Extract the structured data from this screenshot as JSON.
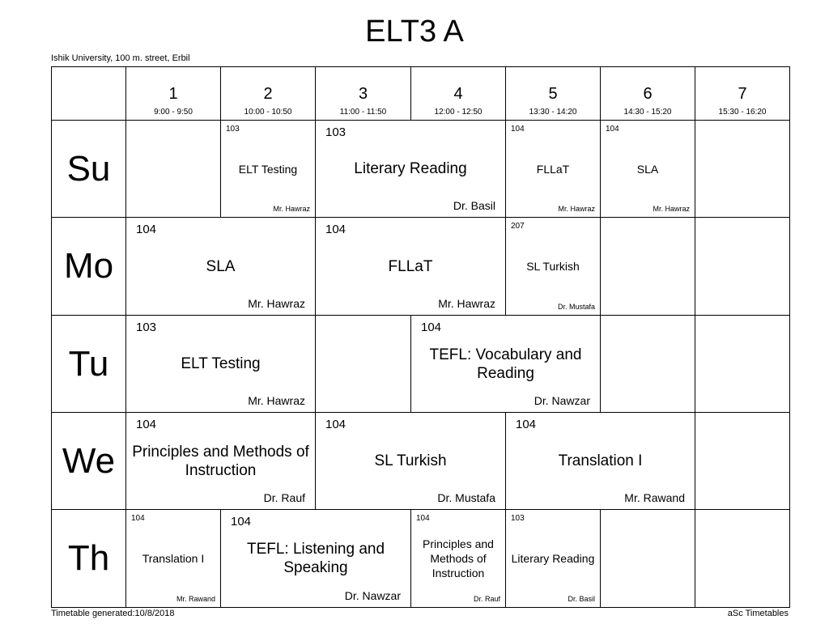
{
  "title": "ELT3 A",
  "address": "Ishik University, 100 m. street, Erbil",
  "footer_left": "Timetable generated:10/8/2018",
  "footer_right": "aSc Timetables",
  "periods": [
    {
      "num": "1",
      "time": "9:00 - 9:50"
    },
    {
      "num": "2",
      "time": "10:00 - 10:50"
    },
    {
      "num": "3",
      "time": "11:00 - 11:50"
    },
    {
      "num": "4",
      "time": "12:00 - 12:50"
    },
    {
      "num": "5",
      "time": "13:30 - 14:20"
    },
    {
      "num": "6",
      "time": "14:30 - 15:20"
    },
    {
      "num": "7",
      "time": "15:30 - 16:20"
    }
  ],
  "days": [
    {
      "name": "Su",
      "cells": [
        {
          "start": 1,
          "span": 1
        },
        {
          "start": 2,
          "span": 1,
          "small": true,
          "room": "103",
          "subject": "ELT Testing",
          "teacher": "Mr. Hawraz"
        },
        {
          "start": 3,
          "span": 2,
          "room": "103",
          "subject": "Literary Reading",
          "teacher": "Dr. Basil"
        },
        {
          "start": 5,
          "span": 1,
          "small": true,
          "room": "104",
          "subject": "FLLaT",
          "teacher": "Mr. Hawraz"
        },
        {
          "start": 6,
          "span": 1,
          "small": true,
          "room": "104",
          "subject": "SLA",
          "teacher": "Mr. Hawraz"
        },
        {
          "start": 7,
          "span": 1
        }
      ]
    },
    {
      "name": "Mo",
      "cells": [
        {
          "start": 1,
          "span": 2,
          "room": "104",
          "subject": "SLA",
          "teacher": "Mr. Hawraz"
        },
        {
          "start": 3,
          "span": 2,
          "room": "104",
          "subject": "FLLaT",
          "teacher": "Mr. Hawraz"
        },
        {
          "start": 5,
          "span": 1,
          "small": true,
          "room": "207",
          "subject": "SL Turkish",
          "teacher": "Dr. Mustafa"
        },
        {
          "start": 6,
          "span": 1
        },
        {
          "start": 7,
          "span": 1
        }
      ]
    },
    {
      "name": "Tu",
      "cells": [
        {
          "start": 1,
          "span": 2,
          "room": "103",
          "subject": "ELT Testing",
          "teacher": "Mr. Hawraz"
        },
        {
          "start": 3,
          "span": 1
        },
        {
          "start": 4,
          "span": 2,
          "room": "104",
          "subject": "TEFL: Vocabulary and Reading",
          "teacher": "Dr. Nawzar"
        },
        {
          "start": 6,
          "span": 1
        },
        {
          "start": 7,
          "span": 1
        }
      ]
    },
    {
      "name": "We",
      "cells": [
        {
          "start": 1,
          "span": 2,
          "room": "104",
          "subject": "Principles and Methods of Instruction",
          "teacher": "Dr. Rauf"
        },
        {
          "start": 3,
          "span": 2,
          "room": "104",
          "subject": "SL Turkish",
          "teacher": "Dr. Mustafa"
        },
        {
          "start": 5,
          "span": 2,
          "room": "104",
          "subject": "Translation I",
          "teacher": "Mr. Rawand"
        },
        {
          "start": 7,
          "span": 1
        }
      ]
    },
    {
      "name": "Th",
      "cells": [
        {
          "start": 1,
          "span": 1,
          "small": true,
          "room": "104",
          "subject": "Translation I",
          "teacher": "Mr. Rawand"
        },
        {
          "start": 2,
          "span": 2,
          "room": "104",
          "subject": "TEFL: Listening and Speaking",
          "teacher": "Dr. Nawzar"
        },
        {
          "start": 4,
          "span": 1,
          "small": true,
          "room": "104",
          "subject": "Principles and Methods of Instruction",
          "teacher": "Dr. Rauf"
        },
        {
          "start": 5,
          "span": 1,
          "small": true,
          "room": "103",
          "subject": "Literary Reading",
          "teacher": "Dr. Basil"
        },
        {
          "start": 6,
          "span": 1
        },
        {
          "start": 7,
          "span": 1
        }
      ]
    }
  ]
}
